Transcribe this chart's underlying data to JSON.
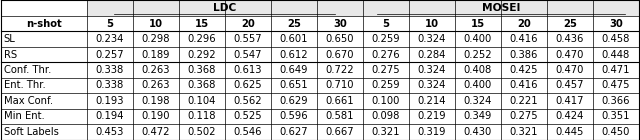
{
  "col_groups": [
    "LDC",
    "MOSEI"
  ],
  "n_shot_cols": [
    "5",
    "10",
    "15",
    "20",
    "25",
    "30"
  ],
  "rows": [
    {
      "label": "SL",
      "ldc": [
        0.234,
        0.298,
        0.296,
        0.557,
        0.601,
        0.65
      ],
      "mosei": [
        0.259,
        0.324,
        0.4,
        0.416,
        0.436,
        0.458
      ]
    },
    {
      "label": "RS",
      "ldc": [
        0.257,
        0.189,
        0.292,
        0.547,
        0.612,
        0.67
      ],
      "mosei": [
        0.276,
        0.284,
        0.252,
        0.386,
        0.47,
        0.448
      ]
    },
    {
      "label": "Conf. Thr.",
      "ldc": [
        0.338,
        0.263,
        0.368,
        0.613,
        0.649,
        0.722
      ],
      "mosei": [
        0.275,
        0.324,
        0.408,
        0.425,
        0.47,
        0.471
      ]
    },
    {
      "label": "Ent. Thr.",
      "ldc": [
        0.338,
        0.263,
        0.368,
        0.625,
        0.651,
        0.71
      ],
      "mosei": [
        0.259,
        0.324,
        0.4,
        0.416,
        0.457,
        0.475
      ]
    },
    {
      "label": "Max Conf.",
      "ldc": [
        0.193,
        0.198,
        0.104,
        0.562,
        0.629,
        0.661
      ],
      "mosei": [
        0.1,
        0.214,
        0.324,
        0.221,
        0.417,
        0.366
      ]
    },
    {
      "label": "Min Ent.",
      "ldc": [
        0.194,
        0.19,
        0.118,
        0.525,
        0.596,
        0.581
      ],
      "mosei": [
        0.098,
        0.219,
        0.349,
        0.275,
        0.424,
        0.351
      ]
    },
    {
      "label": "Soft Labels",
      "ldc": [
        0.453,
        0.472,
        0.502,
        0.546,
        0.627,
        0.667
      ],
      "mosei": [
        0.321,
        0.319,
        0.43,
        0.321,
        0.445,
        0.45
      ]
    }
  ],
  "figsize": [
    6.4,
    1.4
  ],
  "dpi": 100,
  "font_size": 7.2,
  "bg_color": "#ffffff",
  "line_color": "#000000",
  "header_bg": "#e8e8e8"
}
